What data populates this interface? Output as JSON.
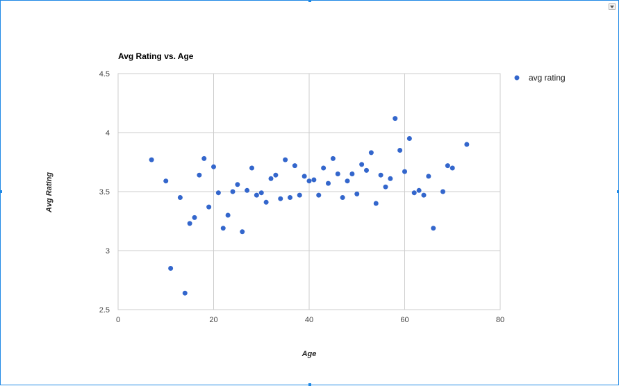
{
  "chart_data": {
    "type": "scatter",
    "title": "Avg Rating vs. Age",
    "xlabel": "Age",
    "ylabel": "Avg Rating",
    "xlim": [
      0,
      80
    ],
    "ylim": [
      2.5,
      4.5
    ],
    "x_ticks": [
      0,
      20,
      40,
      60,
      80
    ],
    "y_ticks": [
      2.5,
      3,
      3.5,
      4,
      4.5
    ],
    "x_tick_labels": [
      "0",
      "20",
      "40",
      "60",
      "80"
    ],
    "y_tick_labels": [
      "2.5",
      "3",
      "3.5",
      "4",
      "4.5"
    ],
    "grid": true,
    "legend_position": "right",
    "series": [
      {
        "name": "avg rating",
        "color": "#3366cc",
        "x": [
          7,
          10,
          11,
          13,
          14,
          15,
          16,
          17,
          18,
          19,
          20,
          21,
          22,
          23,
          24,
          25,
          26,
          27,
          28,
          29,
          30,
          31,
          32,
          33,
          34,
          35,
          36,
          37,
          38,
          39,
          40,
          41,
          42,
          43,
          44,
          45,
          46,
          47,
          48,
          49,
          50,
          51,
          52,
          53,
          54,
          55,
          56,
          57,
          58,
          59,
          60,
          61,
          62,
          63,
          64,
          65,
          66,
          68,
          69,
          70,
          73
        ],
        "y": [
          3.77,
          3.59,
          2.85,
          3.45,
          2.64,
          3.23,
          3.28,
          3.64,
          3.78,
          3.37,
          3.71,
          3.49,
          3.19,
          3.3,
          3.5,
          3.56,
          3.16,
          3.51,
          3.7,
          3.47,
          3.49,
          3.41,
          3.61,
          3.64,
          3.44,
          3.77,
          3.45,
          3.72,
          3.47,
          3.63,
          3.59,
          3.6,
          3.47,
          3.7,
          3.57,
          3.78,
          3.65,
          3.45,
          3.59,
          3.65,
          3.48,
          3.73,
          3.68,
          3.83,
          3.4,
          3.64,
          3.54,
          3.61,
          4.12,
          3.85,
          3.67,
          3.95,
          3.49,
          3.51,
          3.47,
          3.63,
          3.19,
          3.5,
          3.72,
          3.7,
          3.9
        ]
      }
    ]
  },
  "colors": {
    "gridline": "#cccccc",
    "frame_border": "#1e88e5",
    "point": "#3366cc"
  },
  "icons": {
    "menu": "chevron-down-icon",
    "legend_marker": "circle-marker"
  }
}
